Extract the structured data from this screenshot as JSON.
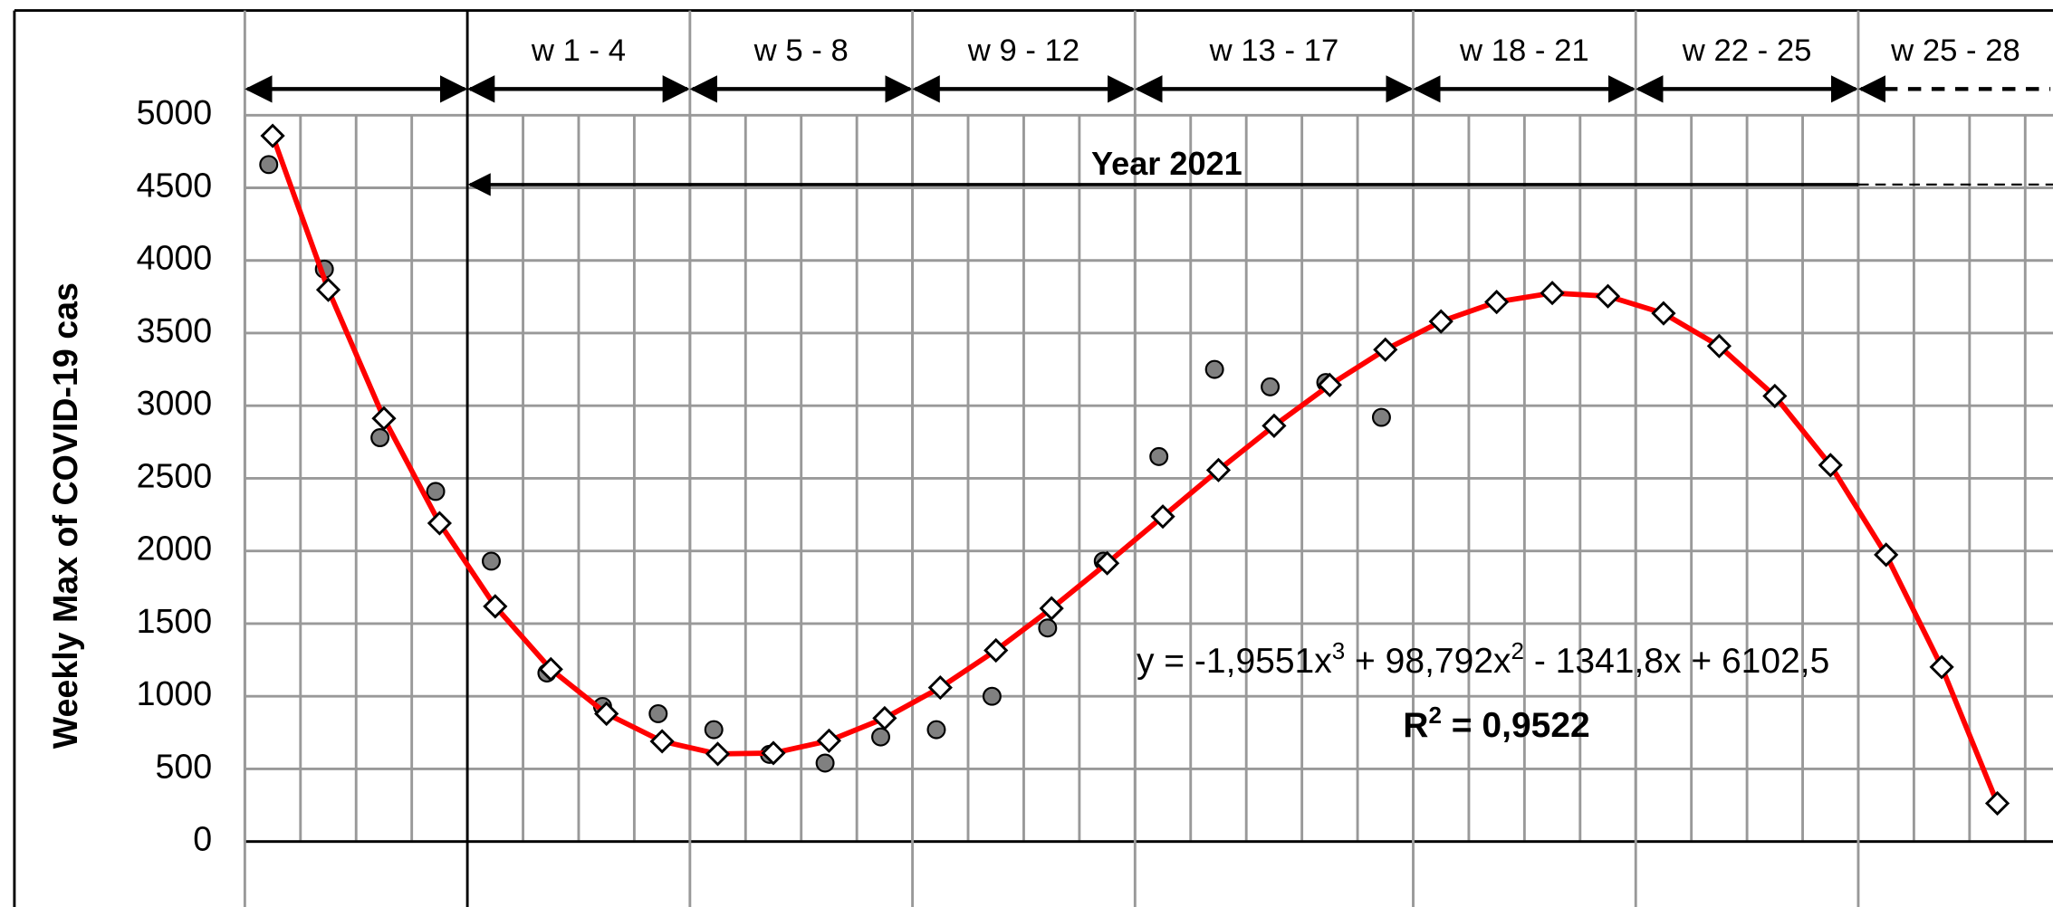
{
  "chart_data": {
    "type": "scatter",
    "y_label": "Weekly Max of COVID-19 cas",
    "x": [
      1,
      2,
      3,
      4,
      5,
      6,
      7,
      8,
      9,
      10,
      11,
      12,
      13,
      14,
      15,
      16,
      17,
      18,
      19,
      20,
      21,
      22,
      23,
      24,
      25,
      26,
      27,
      28,
      29,
      30,
      31,
      32
    ],
    "series": [
      {
        "color": "#808080",
        "marker": "circle",
        "values": [
          4660,
          3940,
          2780,
          2410,
          1930,
          1160,
          930,
          880,
          770,
          600,
          540,
          720,
          770,
          1000,
          1470,
          1930,
          2650,
          3250,
          3130,
          3160,
          2920,
          null,
          null,
          null,
          null,
          null,
          null,
          null,
          null,
          null,
          null,
          null
        ]
      },
      {
        "color": "#ffffff",
        "marker": "diamond",
        "line_color": "#ff0000",
        "values": [
          4858,
          3798,
          2913,
          2191,
          1619,
          1186,
          880,
          690,
          603,
          609,
          694,
          849,
          1060,
          1316,
          1605,
          1916,
          2237,
          2557,
          2862,
          3143,
          3386,
          3580,
          3714,
          3776,
          3754,
          3636,
          3411,
          3067,
          2591,
          1974,
          1201,
          263
        ]
      }
    ],
    "xlim": [
      0.5,
      33
    ],
    "xticks": [
      0.5,
      1.5,
      2.5,
      3.5,
      4.5,
      5.5,
      6.5,
      7.5,
      8.5,
      9.5,
      10.5,
      11.5,
      12.5,
      13.5,
      14.5,
      15.5,
      16.5,
      17.5,
      18.5,
      19.5,
      20.5,
      21.5,
      22.5,
      23.5,
      24.5,
      25.5,
      26.5,
      27.5,
      28.5,
      29.5,
      30.5,
      31.5,
      32.5
    ],
    "ylim": [
      0,
      5000
    ],
    "yticks": [
      0,
      500,
      1000,
      1500,
      2000,
      2500,
      3000,
      3500,
      4000,
      4500,
      5000
    ],
    "grid": true,
    "week_groups": [
      {
        "from": 0.5,
        "to": 4.5
      },
      {
        "label": "w  1 - 4",
        "from": 4.5,
        "to": 8.5
      },
      {
        "label": "w  5 - 8",
        "from": 8.5,
        "to": 12.5
      },
      {
        "label": "w  9 - 12",
        "from": 12.5,
        "to": 16.5
      },
      {
        "label": "w  13 - 17",
        "from": 16.5,
        "to": 21.5
      },
      {
        "label": "w  18 - 21",
        "from": 21.5,
        "to": 25.5
      },
      {
        "label": "w  22 - 25",
        "from": 25.5,
        "to": 29.5
      },
      {
        "label": "w  25 - 28",
        "from": 29.5,
        "to": 33,
        "dashed": true
      }
    ],
    "year_span": {
      "label": "Year 2021",
      "from": 4.5,
      "to": 29.5
    },
    "equation": [
      "y = -1,9551x",
      "3",
      " + 98,792x",
      "2",
      " - 1341,8x + 6102,5"
    ],
    "r2": [
      "R",
      "2",
      " = 0,9522"
    ]
  }
}
